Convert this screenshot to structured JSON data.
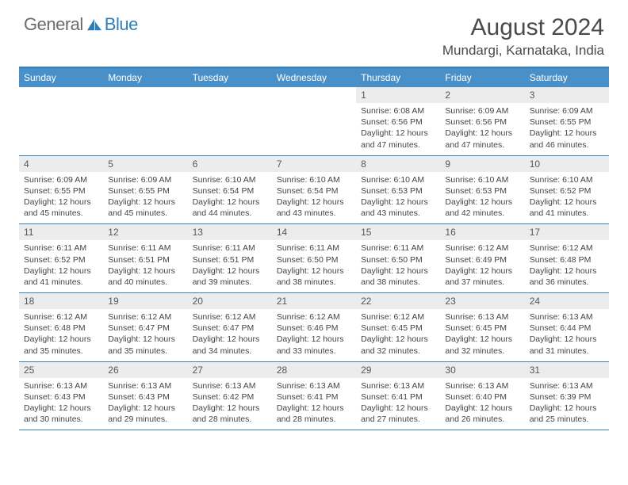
{
  "brand": {
    "text_general": "General",
    "text_blue": "Blue",
    "logo_color": "#2c7fb8"
  },
  "title": {
    "month_year": "August 2024",
    "location": "Mundargi, Karnataka, India"
  },
  "colors": {
    "header_blue": "#4a90c8",
    "border_blue": "#3a7fb5",
    "day_header_bg": "#ececec",
    "text_dark": "#4a4a4a",
    "text_body": "#444444",
    "logo_gray": "#6b6b6b"
  },
  "weekdays": [
    "Sunday",
    "Monday",
    "Tuesday",
    "Wednesday",
    "Thursday",
    "Friday",
    "Saturday"
  ],
  "weeks": [
    [
      {
        "num": "",
        "sunrise": "",
        "sunset": "",
        "daylight": ""
      },
      {
        "num": "",
        "sunrise": "",
        "sunset": "",
        "daylight": ""
      },
      {
        "num": "",
        "sunrise": "",
        "sunset": "",
        "daylight": ""
      },
      {
        "num": "",
        "sunrise": "",
        "sunset": "",
        "daylight": ""
      },
      {
        "num": "1",
        "sunrise": "Sunrise: 6:08 AM",
        "sunset": "Sunset: 6:56 PM",
        "daylight": "Daylight: 12 hours and 47 minutes."
      },
      {
        "num": "2",
        "sunrise": "Sunrise: 6:09 AM",
        "sunset": "Sunset: 6:56 PM",
        "daylight": "Daylight: 12 hours and 47 minutes."
      },
      {
        "num": "3",
        "sunrise": "Sunrise: 6:09 AM",
        "sunset": "Sunset: 6:55 PM",
        "daylight": "Daylight: 12 hours and 46 minutes."
      }
    ],
    [
      {
        "num": "4",
        "sunrise": "Sunrise: 6:09 AM",
        "sunset": "Sunset: 6:55 PM",
        "daylight": "Daylight: 12 hours and 45 minutes."
      },
      {
        "num": "5",
        "sunrise": "Sunrise: 6:09 AM",
        "sunset": "Sunset: 6:55 PM",
        "daylight": "Daylight: 12 hours and 45 minutes."
      },
      {
        "num": "6",
        "sunrise": "Sunrise: 6:10 AM",
        "sunset": "Sunset: 6:54 PM",
        "daylight": "Daylight: 12 hours and 44 minutes."
      },
      {
        "num": "7",
        "sunrise": "Sunrise: 6:10 AM",
        "sunset": "Sunset: 6:54 PM",
        "daylight": "Daylight: 12 hours and 43 minutes."
      },
      {
        "num": "8",
        "sunrise": "Sunrise: 6:10 AM",
        "sunset": "Sunset: 6:53 PM",
        "daylight": "Daylight: 12 hours and 43 minutes."
      },
      {
        "num": "9",
        "sunrise": "Sunrise: 6:10 AM",
        "sunset": "Sunset: 6:53 PM",
        "daylight": "Daylight: 12 hours and 42 minutes."
      },
      {
        "num": "10",
        "sunrise": "Sunrise: 6:10 AM",
        "sunset": "Sunset: 6:52 PM",
        "daylight": "Daylight: 12 hours and 41 minutes."
      }
    ],
    [
      {
        "num": "11",
        "sunrise": "Sunrise: 6:11 AM",
        "sunset": "Sunset: 6:52 PM",
        "daylight": "Daylight: 12 hours and 41 minutes."
      },
      {
        "num": "12",
        "sunrise": "Sunrise: 6:11 AM",
        "sunset": "Sunset: 6:51 PM",
        "daylight": "Daylight: 12 hours and 40 minutes."
      },
      {
        "num": "13",
        "sunrise": "Sunrise: 6:11 AM",
        "sunset": "Sunset: 6:51 PM",
        "daylight": "Daylight: 12 hours and 39 minutes."
      },
      {
        "num": "14",
        "sunrise": "Sunrise: 6:11 AM",
        "sunset": "Sunset: 6:50 PM",
        "daylight": "Daylight: 12 hours and 38 minutes."
      },
      {
        "num": "15",
        "sunrise": "Sunrise: 6:11 AM",
        "sunset": "Sunset: 6:50 PM",
        "daylight": "Daylight: 12 hours and 38 minutes."
      },
      {
        "num": "16",
        "sunrise": "Sunrise: 6:12 AM",
        "sunset": "Sunset: 6:49 PM",
        "daylight": "Daylight: 12 hours and 37 minutes."
      },
      {
        "num": "17",
        "sunrise": "Sunrise: 6:12 AM",
        "sunset": "Sunset: 6:48 PM",
        "daylight": "Daylight: 12 hours and 36 minutes."
      }
    ],
    [
      {
        "num": "18",
        "sunrise": "Sunrise: 6:12 AM",
        "sunset": "Sunset: 6:48 PM",
        "daylight": "Daylight: 12 hours and 35 minutes."
      },
      {
        "num": "19",
        "sunrise": "Sunrise: 6:12 AM",
        "sunset": "Sunset: 6:47 PM",
        "daylight": "Daylight: 12 hours and 35 minutes."
      },
      {
        "num": "20",
        "sunrise": "Sunrise: 6:12 AM",
        "sunset": "Sunset: 6:47 PM",
        "daylight": "Daylight: 12 hours and 34 minutes."
      },
      {
        "num": "21",
        "sunrise": "Sunrise: 6:12 AM",
        "sunset": "Sunset: 6:46 PM",
        "daylight": "Daylight: 12 hours and 33 minutes."
      },
      {
        "num": "22",
        "sunrise": "Sunrise: 6:12 AM",
        "sunset": "Sunset: 6:45 PM",
        "daylight": "Daylight: 12 hours and 32 minutes."
      },
      {
        "num": "23",
        "sunrise": "Sunrise: 6:13 AM",
        "sunset": "Sunset: 6:45 PM",
        "daylight": "Daylight: 12 hours and 32 minutes."
      },
      {
        "num": "24",
        "sunrise": "Sunrise: 6:13 AM",
        "sunset": "Sunset: 6:44 PM",
        "daylight": "Daylight: 12 hours and 31 minutes."
      }
    ],
    [
      {
        "num": "25",
        "sunrise": "Sunrise: 6:13 AM",
        "sunset": "Sunset: 6:43 PM",
        "daylight": "Daylight: 12 hours and 30 minutes."
      },
      {
        "num": "26",
        "sunrise": "Sunrise: 6:13 AM",
        "sunset": "Sunset: 6:43 PM",
        "daylight": "Daylight: 12 hours and 29 minutes."
      },
      {
        "num": "27",
        "sunrise": "Sunrise: 6:13 AM",
        "sunset": "Sunset: 6:42 PM",
        "daylight": "Daylight: 12 hours and 28 minutes."
      },
      {
        "num": "28",
        "sunrise": "Sunrise: 6:13 AM",
        "sunset": "Sunset: 6:41 PM",
        "daylight": "Daylight: 12 hours and 28 minutes."
      },
      {
        "num": "29",
        "sunrise": "Sunrise: 6:13 AM",
        "sunset": "Sunset: 6:41 PM",
        "daylight": "Daylight: 12 hours and 27 minutes."
      },
      {
        "num": "30",
        "sunrise": "Sunrise: 6:13 AM",
        "sunset": "Sunset: 6:40 PM",
        "daylight": "Daylight: 12 hours and 26 minutes."
      },
      {
        "num": "31",
        "sunrise": "Sunrise: 6:13 AM",
        "sunset": "Sunset: 6:39 PM",
        "daylight": "Daylight: 12 hours and 25 minutes."
      }
    ]
  ]
}
